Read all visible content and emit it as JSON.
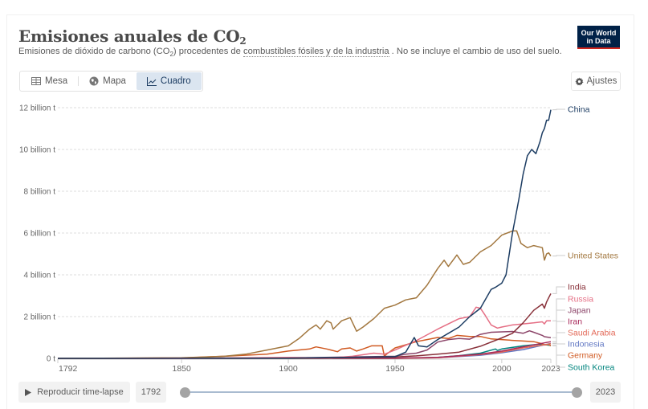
{
  "header": {
    "title": "Emisiones anuales de CO",
    "title_sub": "2",
    "subtitle_pre": "Emisiones de dióxido de carbono (CO",
    "subtitle_sub": "2",
    "subtitle_mid": ") procedentes de ",
    "subtitle_link": "combustibles fósiles y de la industria",
    "subtitle_post": " . No se incluye el cambio de uso del suelo.",
    "logo_line1": "Our World",
    "logo_line2": "in Data"
  },
  "tabs": [
    {
      "label": "Mesa",
      "icon": "table-icon",
      "active": false
    },
    {
      "label": "Mapa",
      "icon": "globe-icon",
      "active": false
    },
    {
      "label": "Cuadro",
      "icon": "line-chart-icon",
      "active": true
    }
  ],
  "settings_label": "Ajustes",
  "controls": {
    "play_label": "Reproducir time-lapse",
    "start_year": "1792",
    "end_year": "2023",
    "range_start_fraction": 0,
    "range_end_fraction": 1
  },
  "chart_data": {
    "type": "line",
    "title": "Emisiones anuales de CO₂",
    "xlabel": "",
    "ylabel": "",
    "xlim": [
      1792,
      2023
    ],
    "ylim": [
      0,
      12
    ],
    "y_unit": "billion t",
    "y_ticks": [
      0,
      2,
      4,
      6,
      8,
      10,
      12
    ],
    "y_tick_labels": [
      "0 t",
      "2 billion t",
      "4 billion t",
      "6 billion t",
      "8 billion t",
      "10 billion t",
      "12 billion t"
    ],
    "x_ticks": [
      1792,
      1850,
      1900,
      1950,
      2000,
      2023
    ],
    "x_tick_labels": [
      "1792",
      "1850",
      "1900",
      "1950",
      "2000",
      "2023"
    ],
    "grid": true,
    "legend": "right-end-labels",
    "series": [
      {
        "name": "China",
        "color": "#1d3d63",
        "x": [
          1792,
          1900,
          1950,
          1955,
          1959,
          1961,
          1965,
          1970,
          1975,
          1980,
          1985,
          1990,
          1995,
          1997,
          2000,
          2002,
          2005,
          2008,
          2010,
          2012,
          2014,
          2016,
          2018,
          2019,
          2020,
          2021,
          2022,
          2023
        ],
        "y": [
          0,
          0.01,
          0.08,
          0.3,
          1.0,
          0.6,
          0.55,
          0.9,
          1.2,
          1.5,
          2.0,
          2.4,
          3.3,
          3.4,
          3.6,
          4.0,
          6.0,
          7.6,
          8.8,
          9.7,
          10.0,
          9.8,
          10.4,
          10.8,
          11.0,
          11.4,
          11.4,
          11.9
        ]
      },
      {
        "name": "United States",
        "color": "#a2773f",
        "x": [
          1792,
          1850,
          1870,
          1880,
          1890,
          1900,
          1905,
          1910,
          1913,
          1915,
          1918,
          1920,
          1921,
          1925,
          1929,
          1932,
          1935,
          1940,
          1945,
          1950,
          1955,
          1960,
          1965,
          1970,
          1973,
          1975,
          1979,
          1982,
          1985,
          1990,
          1995,
          2000,
          2005,
          2007,
          2009,
          2012,
          2015,
          2019,
          2020,
          2021,
          2022,
          2023
        ],
        "y": [
          0,
          0.02,
          0.1,
          0.2,
          0.4,
          0.6,
          0.95,
          1.4,
          1.6,
          1.4,
          1.8,
          1.7,
          1.4,
          1.8,
          1.95,
          1.3,
          1.5,
          1.9,
          2.4,
          2.55,
          2.8,
          2.9,
          3.5,
          4.3,
          4.7,
          4.4,
          4.95,
          4.5,
          4.6,
          5.1,
          5.4,
          5.9,
          6.1,
          6.1,
          5.5,
          5.3,
          5.4,
          5.3,
          4.7,
          5.0,
          5.05,
          4.9
        ]
      },
      {
        "name": "India",
        "color": "#883039",
        "x": [
          1792,
          1900,
          1950,
          1960,
          1970,
          1980,
          1990,
          2000,
          2005,
          2010,
          2015,
          2019,
          2020,
          2021,
          2022,
          2023
        ],
        "y": [
          0,
          0.01,
          0.07,
          0.12,
          0.2,
          0.3,
          0.58,
          0.98,
          1.2,
          1.7,
          2.3,
          2.6,
          2.4,
          2.7,
          2.9,
          3.1
        ]
      },
      {
        "name": "Russia",
        "color": "#e56e84",
        "x": [
          1792,
          1850,
          1900,
          1920,
          1930,
          1940,
          1945,
          1950,
          1960,
          1970,
          1980,
          1985,
          1988,
          1990,
          1992,
          1995,
          1998,
          2000,
          2005,
          2010,
          2015,
          2019,
          2020,
          2021,
          2022,
          2023
        ],
        "y": [
          0,
          0.0,
          0.05,
          0.02,
          0.1,
          0.25,
          0.2,
          0.4,
          0.85,
          1.4,
          1.9,
          2.0,
          2.45,
          2.4,
          2.1,
          1.6,
          1.45,
          1.5,
          1.6,
          1.65,
          1.7,
          1.75,
          1.65,
          1.8,
          1.8,
          1.8
        ]
      },
      {
        "name": "Japan",
        "color": "#8c4569",
        "x": [
          1792,
          1900,
          1950,
          1955,
          1960,
          1965,
          1970,
          1975,
          1980,
          1985,
          1990,
          1995,
          2000,
          2005,
          2010,
          2013,
          2015,
          2019,
          2020,
          2023
        ],
        "y": [
          0,
          0.02,
          0.1,
          0.2,
          0.25,
          0.4,
          0.78,
          0.9,
          0.95,
          0.92,
          1.15,
          1.25,
          1.27,
          1.29,
          1.2,
          1.32,
          1.25,
          1.1,
          1.04,
          0.99
        ]
      },
      {
        "name": "Iran",
        "color": "#a8295a",
        "x": [
          1792,
          1950,
          1970,
          1990,
          2000,
          2010,
          2023
        ],
        "y": [
          0,
          0.01,
          0.05,
          0.2,
          0.35,
          0.55,
          0.8
        ]
      },
      {
        "name": "Saudi Arabia",
        "color": "#e36a59",
        "x": [
          1792,
          1950,
          1970,
          1990,
          2000,
          2010,
          2023
        ],
        "y": [
          0,
          0.0,
          0.03,
          0.18,
          0.3,
          0.5,
          0.7
        ]
      },
      {
        "name": "Indonesia",
        "color": "#6177c3",
        "x": [
          1792,
          1950,
          1970,
          1990,
          2000,
          2010,
          2023
        ],
        "y": [
          0,
          0.01,
          0.03,
          0.15,
          0.27,
          0.42,
          0.72
        ]
      },
      {
        "name": "Germany",
        "color": "#d05a22",
        "x": [
          1792,
          1850,
          1870,
          1890,
          1900,
          1910,
          1913,
          1918,
          1920,
          1923,
          1925,
          1929,
          1932,
          1935,
          1939,
          1944,
          1945,
          1946,
          1950,
          1955,
          1960,
          1965,
          1970,
          1975,
          1979,
          1985,
          1990,
          1995,
          2000,
          2005,
          2010,
          2015,
          2019,
          2020,
          2022,
          2023
        ],
        "y": [
          0,
          0.03,
          0.1,
          0.2,
          0.35,
          0.45,
          0.55,
          0.45,
          0.4,
          0.32,
          0.45,
          0.5,
          0.35,
          0.45,
          0.6,
          0.6,
          0.1,
          0.2,
          0.5,
          0.65,
          0.8,
          0.9,
          1.0,
          0.95,
          1.1,
          1.05,
          1.05,
          0.93,
          0.9,
          0.86,
          0.83,
          0.8,
          0.7,
          0.64,
          0.67,
          0.6
        ]
      },
      {
        "name": "South Korea",
        "color": "#00847e",
        "x": [
          1792,
          1950,
          1970,
          1980,
          1990,
          1997,
          1998,
          2000,
          2010,
          2018,
          2023
        ],
        "y": [
          0,
          0.0,
          0.05,
          0.13,
          0.25,
          0.45,
          0.38,
          0.45,
          0.6,
          0.68,
          0.62
        ]
      }
    ],
    "legend_labels": [
      "China",
      "United States",
      "India",
      "Russia",
      "Japan",
      "Iran",
      "Saudi Arabia",
      "Indonesia",
      "Germany",
      "South Korea"
    ]
  }
}
